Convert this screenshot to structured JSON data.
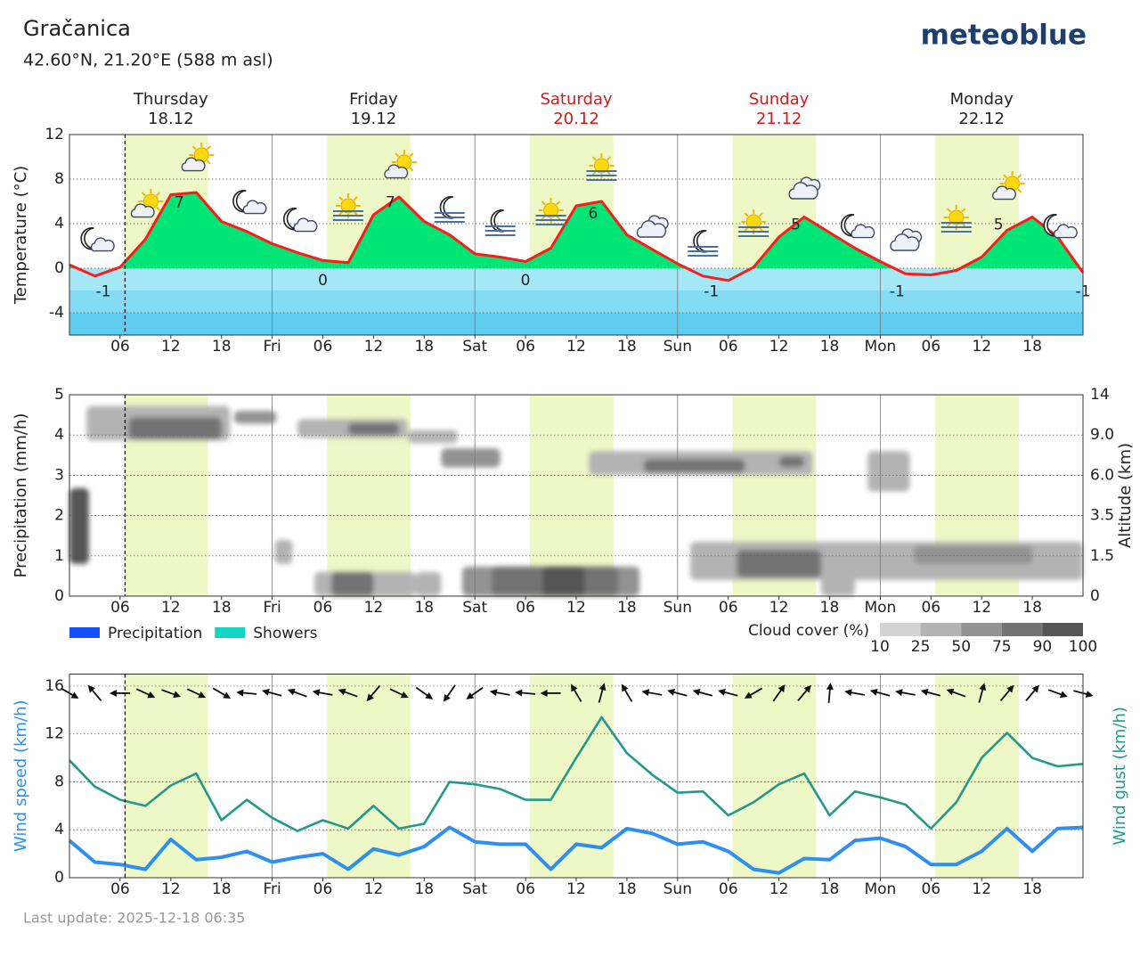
{
  "header": {
    "title": "Gračanica",
    "subtitle": "42.60°N, 21.20°E (588 m asl)",
    "logo": "meteoblue"
  },
  "days": [
    {
      "name": "Thursday",
      "date": "18.12",
      "color": "#222222"
    },
    {
      "name": "Friday",
      "date": "19.12",
      "color": "#222222"
    },
    {
      "name": "Saturday",
      "date": "20.12",
      "color": "#d11a1a"
    },
    {
      "name": "Sunday",
      "date": "21.12",
      "color": "#d11a1a"
    },
    {
      "name": "Monday",
      "date": "22.12",
      "color": "#222222"
    }
  ],
  "daylight": [
    [
      6.5,
      16.4
    ],
    [
      30.5,
      40.4
    ],
    [
      54.5,
      64.4
    ],
    [
      78.5,
      88.4
    ],
    [
      102.5,
      112.4
    ]
  ],
  "daylight_color": "#eef7c6",
  "now": 6.58,
  "chart_data": [
    {
      "type": "line",
      "ylabel": "Temperature (°C)",
      "x": [
        0,
        3,
        6,
        9,
        12,
        15,
        18,
        21,
        24,
        27,
        30,
        33,
        36,
        39,
        42,
        45,
        48,
        51,
        54,
        57,
        60,
        63,
        66,
        69,
        72,
        75,
        78,
        81,
        84,
        87,
        90,
        93,
        96,
        99,
        102,
        105,
        108,
        111,
        114,
        117,
        120
      ],
      "values": [
        0.3,
        -0.7,
        0.1,
        2.6,
        6.6,
        6.8,
        4.2,
        3.3,
        2.2,
        1.4,
        0.7,
        0.5,
        4.8,
        6.4,
        4.2,
        3.0,
        1.3,
        1.0,
        0.6,
        1.8,
        5.6,
        6.0,
        3.0,
        1.7,
        0.4,
        -0.7,
        -1.1,
        0.1,
        2.8,
        4.6,
        3.2,
        1.8,
        0.6,
        -0.5,
        -0.6,
        -0.2,
        1.0,
        3.4,
        4.6,
        2.8,
        -0.4
      ],
      "color": "#ff1a1a",
      "fill_color": "#00e676",
      "bands": [
        {
          "from": 0,
          "to": -2,
          "color": "#a4e8f7"
        },
        {
          "from": -2,
          "to": -4,
          "color": "#84dcf4"
        },
        {
          "from": -4,
          "to": -6,
          "color": "#5fcdf0"
        }
      ],
      "max_labels": {
        "x": [
          13,
          38,
          62,
          86,
          110
        ],
        "values": [
          7,
          7,
          6,
          5,
          5
        ]
      },
      "min_labels": {
        "x": [
          4,
          30,
          54,
          76,
          98,
          120
        ],
        "values": [
          -1,
          0,
          0,
          -1,
          -1,
          -1
        ]
      },
      "xlim": [
        0,
        120
      ],
      "ylim": [
        -6,
        12
      ],
      "yticks": [
        -4,
        0,
        4,
        8,
        12
      ],
      "grid": true,
      "xticks": [
        {
          "value": 6,
          "label": "06"
        },
        12,
        18,
        {
          "value": 24,
          "label": "Fri"
        },
        {
          "value": 30,
          "label": "06"
        },
        {
          "value": 36,
          "label": "12"
        },
        {
          "value": 42,
          "label": "18"
        },
        {
          "value": 48,
          "label": "Sat"
        },
        {
          "value": 54,
          "label": "06"
        },
        {
          "value": 60,
          "label": "12"
        },
        {
          "value": 66,
          "label": "18"
        },
        {
          "value": 72,
          "label": "Sun"
        },
        {
          "value": 78,
          "label": "06"
        },
        {
          "value": 84,
          "label": "12"
        },
        {
          "value": 90,
          "label": "18"
        },
        {
          "value": 96,
          "label": "Mon"
        },
        {
          "value": 102,
          "label": "06"
        },
        {
          "value": 108,
          "label": "12"
        },
        {
          "value": 114,
          "label": "18"
        }
      ]
    },
    {
      "type": "bar",
      "ylabel": "Precipitation (mm/h)",
      "y2label": "Altitude (km)",
      "x": [
        0,
        3,
        6,
        9,
        12,
        15,
        18,
        21,
        24,
        27,
        30,
        33,
        36,
        39,
        42,
        45,
        48,
        51,
        54,
        57,
        60,
        63,
        66,
        69,
        72,
        75,
        78,
        81,
        84,
        87,
        90,
        93,
        96,
        99,
        102,
        105,
        108,
        111,
        114,
        117,
        120
      ],
      "series": [
        {
          "name": "Precipitation",
          "color": "#1450ff",
          "values": [
            0,
            0,
            0,
            0,
            0,
            0,
            0,
            0,
            0,
            0,
            0,
            0,
            0,
            0,
            0,
            0,
            0,
            0,
            0,
            0,
            0,
            0,
            0,
            0,
            0,
            0,
            0,
            0,
            0,
            0,
            0,
            0,
            0,
            0,
            0,
            0,
            0,
            0,
            0,
            0,
            0
          ]
        },
        {
          "name": "Showers",
          "color": "#12d6c2",
          "values": [
            0,
            0,
            0,
            0,
            0,
            0,
            0,
            0,
            0,
            0,
            0,
            0,
            0,
            0,
            0,
            0,
            0,
            0,
            0,
            0,
            0,
            0,
            0,
            0,
            0,
            0,
            0,
            0,
            0,
            0,
            0,
            0,
            0,
            0,
            0,
            0,
            0,
            0,
            0,
            0,
            0
          ]
        }
      ],
      "cloud_cover": {
        "label": "Cloud cover (%)",
        "ticks": [
          10,
          25,
          50,
          75,
          90,
          100
        ],
        "colors": [
          "#d3d3d3",
          "#b3b3b3",
          "#939393",
          "#737373",
          "#555555"
        ],
        "blocks": [
          {
            "x": [
              0,
              2.3
            ],
            "altitude": [
              1.2,
              5.2
            ],
            "value": 95
          },
          {
            "x": [
              2,
              19
            ],
            "altitude": [
              8.6,
              12.6
            ],
            "value": 30
          },
          {
            "x": [
              7,
              18
            ],
            "altitude": [
              8.7,
              11.2
            ],
            "value": 85
          },
          {
            "x": [
              19.5,
              24.5
            ],
            "altitude": [
              10.4,
              12
            ],
            "value": 70
          },
          {
            "x": [
              27,
              40
            ],
            "altitude": [
              8.8,
              11
            ],
            "value": 35
          },
          {
            "x": [
              33,
              39
            ],
            "altitude": [
              9,
              10.5
            ],
            "value": 85
          },
          {
            "x": [
              40,
              46
            ],
            "altitude": [
              8.4,
              9.6
            ],
            "value": 30
          },
          {
            "x": [
              44,
              51
            ],
            "altitude": [
              6.6,
              8
            ],
            "value": 50
          },
          {
            "x": [
              24.3,
              26.4
            ],
            "altitude": [
              1.2,
              2.3
            ],
            "value": 30
          },
          {
            "x": [
              29,
              41
            ],
            "altitude": [
              0,
              0.9
            ],
            "value": 30
          },
          {
            "x": [
              31,
              36
            ],
            "altitude": [
              0,
              0.9
            ],
            "value": 75
          },
          {
            "x": [
              41,
              44
            ],
            "altitude": [
              0,
              0.9
            ],
            "value": 25
          },
          {
            "x": [
              46.5,
              67.5
            ],
            "altitude": [
              0,
              1.1
            ],
            "value": 50
          },
          {
            "x": [
              50,
              65
            ],
            "altitude": [
              0,
              1.1
            ],
            "value": 80
          },
          {
            "x": [
              56,
              61
            ],
            "altitude": [
              0,
              1.1
            ],
            "value": 95
          },
          {
            "x": [
              61.5,
              88
            ],
            "altitude": [
              6,
              7.8
            ],
            "value": 45
          },
          {
            "x": [
              68,
              80
            ],
            "altitude": [
              6.2,
              7.2
            ],
            "value": 75
          },
          {
            "x": [
              84,
              87
            ],
            "altitude": [
              6.6,
              7.4
            ],
            "value": 85
          },
          {
            "x": [
              94.5,
              99.5
            ],
            "altitude": [
              5,
              7.8
            ],
            "value": 45
          },
          {
            "x": [
              73.5,
              120
            ],
            "altitude": [
              0.6,
              2.2
            ],
            "value": 35
          },
          {
            "x": [
              79,
              89
            ],
            "altitude": [
              0.7,
              1.8
            ],
            "value": 85
          },
          {
            "x": [
              100,
              114
            ],
            "altitude": [
              1.2,
              2
            ],
            "value": 70
          },
          {
            "x": [
              89,
              93
            ],
            "altitude": [
              0,
              0.9
            ],
            "value": 25
          }
        ]
      },
      "xlim": [
        0,
        120
      ],
      "ylim": [
        0,
        5
      ],
      "yticks": [
        0,
        1,
        2,
        3,
        4,
        5
      ],
      "y2lim": [
        0,
        14
      ],
      "y2ticks": [
        0,
        1.5,
        3.5,
        {
          "value": 6,
          "label": "6.0"
        },
        {
          "value": 9,
          "label": "9.0"
        },
        14
      ],
      "grid": true,
      "xticks": [
        {
          "value": 6,
          "label": "06"
        },
        12,
        18,
        {
          "value": 24,
          "label": "Fri"
        },
        {
          "value": 30,
          "label": "06"
        },
        {
          "value": 36,
          "label": "12"
        },
        {
          "value": 42,
          "label": "18"
        },
        {
          "value": 48,
          "label": "Sat"
        },
        {
          "value": 54,
          "label": "06"
        },
        {
          "value": 60,
          "label": "12"
        },
        {
          "value": 66,
          "label": "18"
        },
        {
          "value": 72,
          "label": "Sun"
        },
        {
          "value": 78,
          "label": "06"
        },
        {
          "value": 84,
          "label": "12"
        },
        {
          "value": 90,
          "label": "18"
        },
        {
          "value": 96,
          "label": "Mon"
        },
        {
          "value": 102,
          "label": "06"
        },
        {
          "value": 108,
          "label": "12"
        },
        {
          "value": 114,
          "label": "18"
        }
      ]
    },
    {
      "type": "line",
      "x": [
        0,
        3,
        6,
        9,
        12,
        15,
        18,
        21,
        24,
        27,
        30,
        33,
        36,
        39,
        42,
        45,
        48,
        51,
        54,
        57,
        60,
        63,
        66,
        69,
        72,
        75,
        78,
        81,
        84,
        87,
        90,
        93,
        96,
        99,
        102,
        105,
        108,
        111,
        114,
        117,
        120
      ],
      "series": [
        {
          "name": "Wind speed (km/h)",
          "color": "#2e8ff0",
          "values": [
            3.1,
            1.3,
            1.1,
            0.7,
            3.2,
            1.5,
            1.7,
            2.2,
            1.3,
            1.7,
            2.0,
            0.7,
            2.4,
            1.9,
            2.6,
            4.2,
            3.0,
            2.8,
            2.8,
            0.7,
            2.8,
            2.5,
            4.1,
            3.7,
            2.8,
            3.0,
            2.2,
            0.7,
            0.4,
            1.6,
            1.5,
            3.1,
            3.3,
            2.6,
            1.1,
            1.1,
            2.2,
            4.1,
            2.2,
            4.1,
            4.2
          ]
        },
        {
          "name": "Wind gust (km/h)",
          "color": "#22998a",
          "axis": "y2",
          "values": [
            9.8,
            7.6,
            6.5,
            6.0,
            7.7,
            8.7,
            4.8,
            6.5,
            5.0,
            3.9,
            4.8,
            4.1,
            6.0,
            4.1,
            4.5,
            8.0,
            7.8,
            7.4,
            6.5,
            6.5,
            10.0,
            13.4,
            10.4,
            8.6,
            7.1,
            7.2,
            5.2,
            6.3,
            7.8,
            8.7,
            5.2,
            7.2,
            6.7,
            6.1,
            4.1,
            6.3,
            10.0,
            12.1,
            10.0,
            9.3,
            9.5
          ]
        }
      ],
      "wind_direction": [
        300,
        140,
        90,
        295,
        290,
        295,
        300,
        95,
        105,
        110,
        100,
        110,
        40,
        295,
        305,
        35,
        55,
        100,
        95,
        90,
        150,
        195,
        150,
        100,
        105,
        105,
        105,
        60,
        215,
        220,
        185,
        100,
        105,
        100,
        105,
        110,
        195,
        220,
        220,
        290,
        285
      ],
      "xlim": [
        0,
        120
      ],
      "ylim": [
        0,
        17
      ],
      "yticks": [
        0,
        4,
        8,
        12,
        16
      ],
      "y2lim": [
        0,
        17
      ],
      "grid": true,
      "xticks": [
        {
          "value": 6,
          "label": "06"
        },
        12,
        18,
        {
          "value": 24,
          "label": "Fri"
        },
        {
          "value": 30,
          "label": "06"
        },
        {
          "value": 36,
          "label": "12"
        },
        {
          "value": 42,
          "label": "18"
        },
        {
          "value": 48,
          "label": "Sat"
        },
        {
          "value": 54,
          "label": "06"
        },
        {
          "value": 60,
          "label": "12"
        },
        {
          "value": 66,
          "label": "18"
        },
        {
          "value": 72,
          "label": "Sun"
        },
        {
          "value": 78,
          "label": "06"
        },
        {
          "value": 84,
          "label": "12"
        },
        {
          "value": 90,
          "label": "18"
        },
        {
          "value": 96,
          "label": "Mon"
        },
        {
          "value": 102,
          "label": "06"
        },
        {
          "value": 108,
          "label": "12"
        },
        {
          "value": 114,
          "label": "18"
        }
      ]
    }
  ],
  "footer": "Last update: 2025-12-18 06:35"
}
